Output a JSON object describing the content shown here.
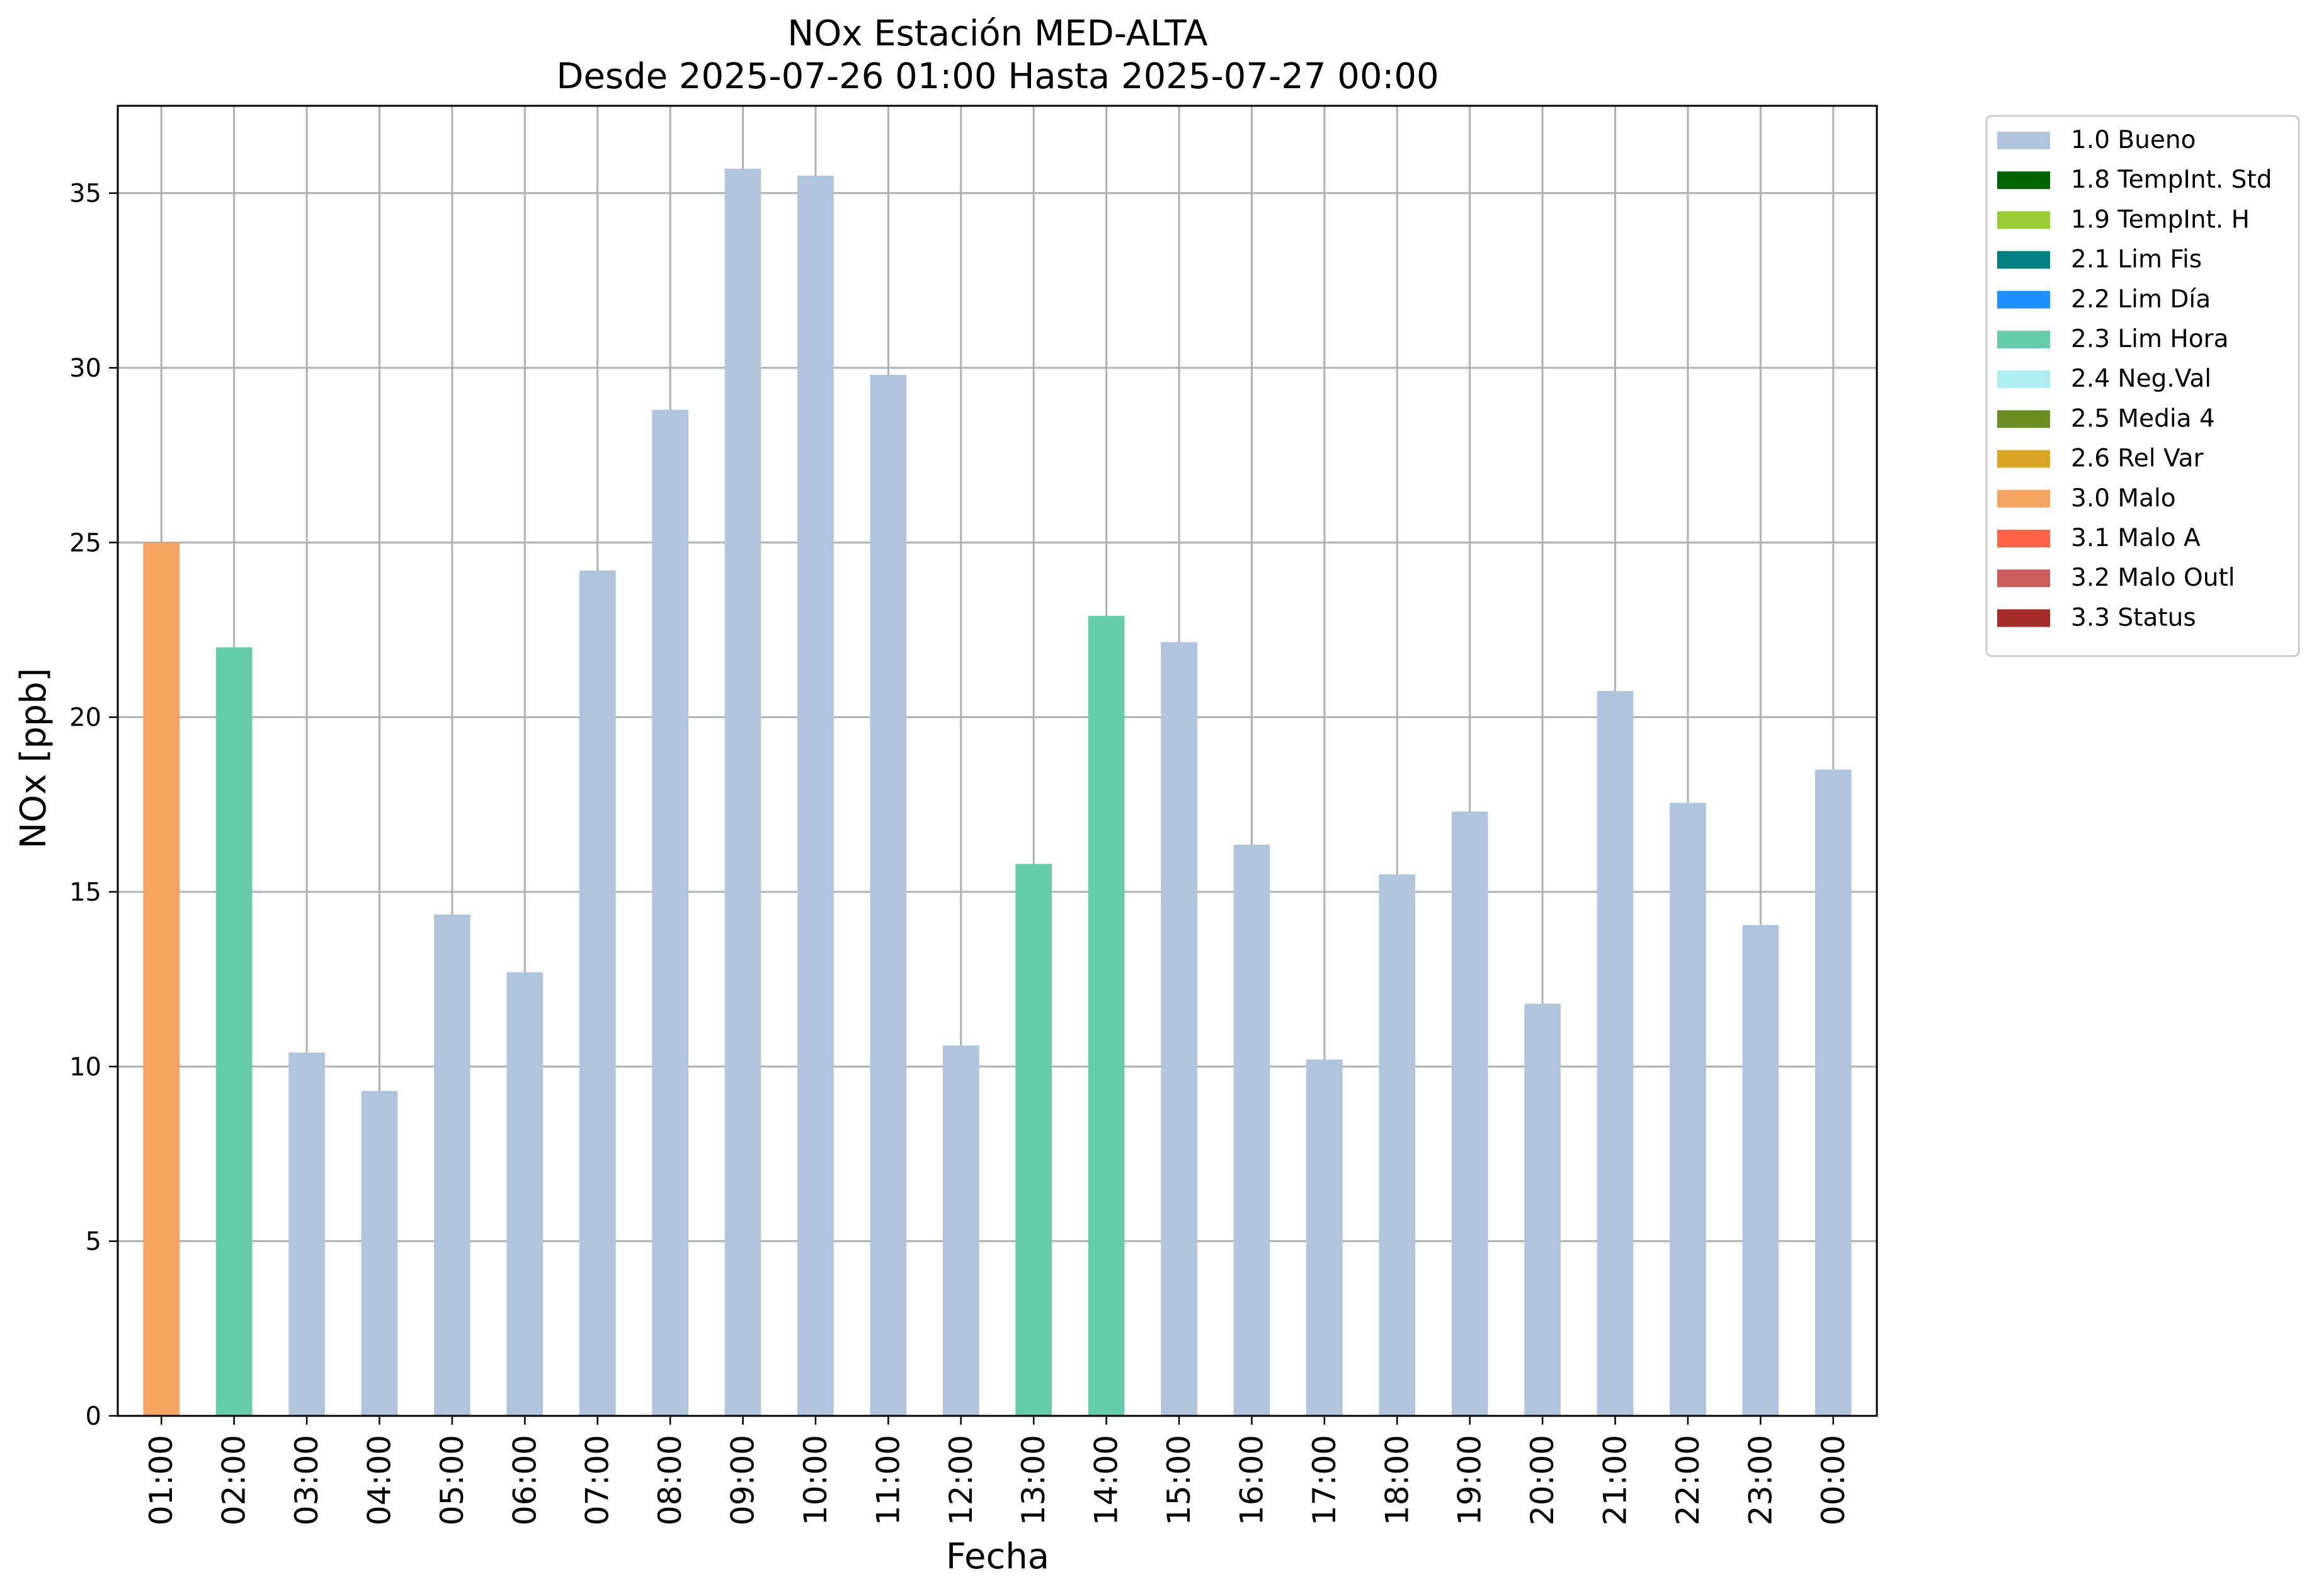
{
  "chart_data": {
    "type": "bar",
    "title": "NOx Estación MED-ALTA",
    "subtitle": "Desde 2025-07-26 01:00 Hasta 2025-07-27 00:00",
    "xlabel": "Fecha",
    "ylabel": "NOx [ppb]",
    "ylim": [
      0,
      37.5
    ],
    "yticks": [
      0,
      5,
      10,
      15,
      20,
      25,
      30,
      35
    ],
    "grid": true,
    "legend_position": "outside-right",
    "categories": [
      "01:00",
      "02:00",
      "03:00",
      "04:00",
      "05:00",
      "06:00",
      "07:00",
      "08:00",
      "09:00",
      "10:00",
      "11:00",
      "12:00",
      "13:00",
      "14:00",
      "15:00",
      "16:00",
      "17:00",
      "18:00",
      "19:00",
      "20:00",
      "21:00",
      "22:00",
      "23:00",
      "00:00"
    ],
    "values": [
      25.0,
      22.0,
      10.4,
      9.3,
      14.35,
      12.7,
      24.2,
      28.8,
      35.7,
      35.5,
      29.8,
      10.6,
      15.8,
      22.9,
      22.15,
      16.35,
      10.2,
      15.5,
      17.3,
      11.8,
      20.75,
      17.55,
      14.05,
      18.5
    ],
    "flags": [
      "3.0 Malo",
      "2.3 Lim Hora",
      "1.0 Bueno",
      "1.0 Bueno",
      "1.0 Bueno",
      "1.0 Bueno",
      "1.0 Bueno",
      "1.0 Bueno",
      "1.0 Bueno",
      "1.0 Bueno",
      "1.0 Bueno",
      "1.0 Bueno",
      "2.3 Lim Hora",
      "2.3 Lim Hora",
      "1.0 Bueno",
      "1.0 Bueno",
      "1.0 Bueno",
      "1.0 Bueno",
      "1.0 Bueno",
      "1.0 Bueno",
      "1.0 Bueno",
      "1.0 Bueno",
      "1.0 Bueno",
      "1.0 Bueno"
    ],
    "legend": [
      {
        "label": "1.0 Bueno",
        "color": "#b0c4de"
      },
      {
        "label": "1.8 TempInt. Std",
        "color": "#006400"
      },
      {
        "label": "1.9 TempInt. H",
        "color": "#9acd32"
      },
      {
        "label": "2.1 Lim Fis",
        "color": "#008080"
      },
      {
        "label": "2.2 Lim Día",
        "color": "#1e90ff"
      },
      {
        "label": "2.3 Lim Hora",
        "color": "#66cdaa"
      },
      {
        "label": "2.4 Neg.Val",
        "color": "#afeeee"
      },
      {
        "label": "2.5 Media 4",
        "color": "#6b8e23"
      },
      {
        "label": "2.6 Rel Var",
        "color": "#daa520"
      },
      {
        "label": "3.0 Malo",
        "color": "#f4a460"
      },
      {
        "label": "3.1 Malo A",
        "color": "#ff6347"
      },
      {
        "label": "3.2 Malo Outl",
        "color": "#cd5c5c"
      },
      {
        "label": "3.3 Status",
        "color": "#a52a2a"
      }
    ]
  }
}
